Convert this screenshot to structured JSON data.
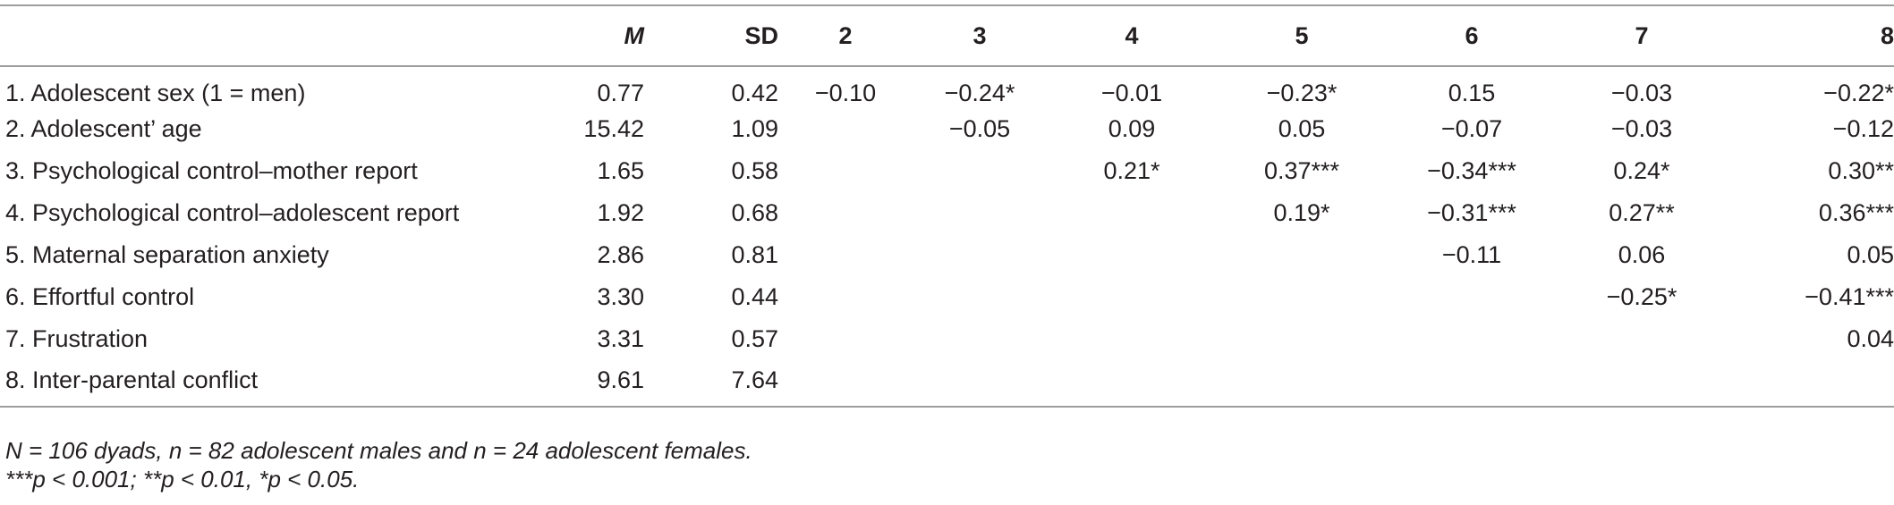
{
  "table": {
    "headers": {
      "label": "",
      "m": "M",
      "sd": "SD",
      "c2": "2",
      "c3": "3",
      "c4": "4",
      "c5": "5",
      "c6": "6",
      "c7": "7",
      "c8": "8"
    },
    "rows": [
      {
        "label": "1. Adolescent sex (1 = men)",
        "m": "0.77",
        "sd": "0.42",
        "c2": "−0.10",
        "c3": "−0.24*",
        "c4": "−0.01",
        "c5": "−0.23*",
        "c6": "0.15",
        "c7": "−0.03",
        "c8": "−0.22*"
      },
      {
        "label": "2. Adolescent’ age",
        "m": "15.42",
        "sd": "1.09",
        "c2": "",
        "c3": "−0.05",
        "c4": "0.09",
        "c5": "0.05",
        "c6": "−0.07",
        "c7": "−0.03",
        "c8": "−0.12"
      },
      {
        "label": "3. Psychological control–mother report",
        "m": "1.65",
        "sd": "0.58",
        "c2": "",
        "c3": "",
        "c4": "0.21*",
        "c5": "0.37***",
        "c6": "−0.34***",
        "c7": "0.24*",
        "c8": "0.30**"
      },
      {
        "label": "4. Psychological control–adolescent report",
        "m": "1.92",
        "sd": "0.68",
        "c2": "",
        "c3": "",
        "c4": "",
        "c5": "0.19*",
        "c6": "−0.31***",
        "c7": "0.27**",
        "c8": "0.36***"
      },
      {
        "label": "5. Maternal separation anxiety",
        "m": "2.86",
        "sd": "0.81",
        "c2": "",
        "c3": "",
        "c4": "",
        "c5": "",
        "c6": "−0.11",
        "c7": "0.06",
        "c8": "0.05"
      },
      {
        "label": "6. Effortful control",
        "m": "3.30",
        "sd": "0.44",
        "c2": "",
        "c3": "",
        "c4": "",
        "c5": "",
        "c6": "",
        "c7": "−0.25*",
        "c8": "−0.41***"
      },
      {
        "label": "7. Frustration",
        "m": "3.31",
        "sd": "0.57",
        "c2": "",
        "c3": "",
        "c4": "",
        "c5": "",
        "c6": "",
        "c7": "",
        "c8": "0.04"
      },
      {
        "label": "8. Inter-parental conflict",
        "m": "9.61",
        "sd": "7.64",
        "c2": "",
        "c3": "",
        "c4": "",
        "c5": "",
        "c6": "",
        "c7": "",
        "c8": ""
      }
    ]
  },
  "notes": {
    "line1": "N = 106 dyads, n = 82 adolescent males and n = 24 adolescent females.",
    "line2": "***p < 0.001; **p < 0.01, *p < 0.05."
  }
}
